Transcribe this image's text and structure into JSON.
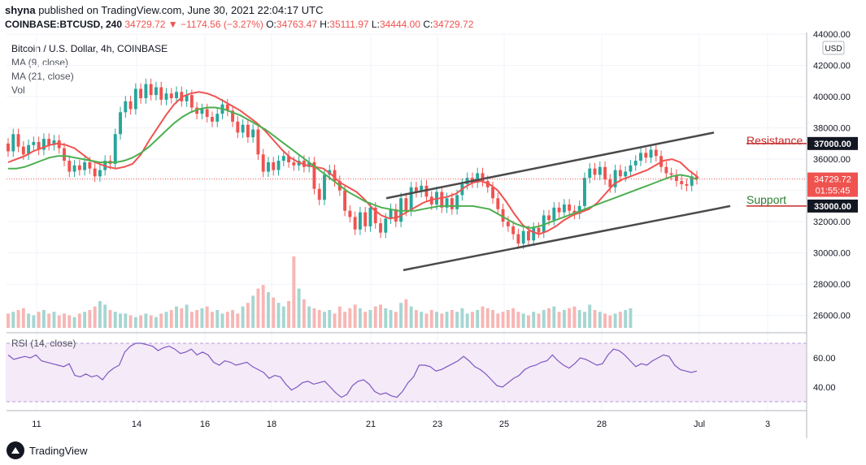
{
  "header": {
    "author": "shyna",
    "published": "published on TradingView.com, June 30, 2021 22:04:17 UTC",
    "symbol": "COINBASE:BTCUSD, 240",
    "price": "34729.72",
    "change": "−1174.56 (−3.27%)",
    "o_label": "O:",
    "o": "34763.47",
    "h_label": "H:",
    "h": "35111.97",
    "l_label": "L:",
    "l": "34444.00",
    "c_label": "C:",
    "c": "34729.72"
  },
  "legend": {
    "title": "Bitcoin / U.S. Dollar, 4h, COINBASE",
    "ma9": "MA (9, close)",
    "ma21": "MA (21, close)",
    "vol": "Vol",
    "rsi": "RSI (14, close)"
  },
  "annotations": {
    "resistance": "Resistance",
    "support": "Support",
    "currency": "USD",
    "countdown": "01:55:45"
  },
  "footer": {
    "brand": "TradingView"
  },
  "colors": {
    "up": "#26a69a",
    "down": "#ef5350",
    "ma9": "#ef5350",
    "ma21": "#4caf50",
    "rsi": "#7e57c2",
    "rsi_band": "#f3e5f5",
    "channel": "#4a4a4a"
  },
  "chart_data": {
    "type": "candlestick",
    "title": "Bitcoin / U.S. Dollar, 4h, COINBASE",
    "y_range": [
      25000,
      44000
    ],
    "y_ticks": [
      "44000.00",
      "42000.00",
      "40000.00",
      "38000.00",
      "36000.00",
      "34000.00",
      "32000.00",
      "30000.00",
      "28000.00",
      "26000.00"
    ],
    "x_tick_labels": [
      "11",
      "14",
      "16",
      "18",
      "21",
      "23",
      "25",
      "28",
      "Jul",
      "3"
    ],
    "x_range_days": [
      "2021-06-10",
      "2021-07-04"
    ],
    "candles": [
      {
        "o": 37000,
        "c": 36500
      },
      {
        "o": 36500,
        "c": 37600
      },
      {
        "o": 37600,
        "c": 36800
      },
      {
        "o": 36800,
        "c": 36300
      },
      {
        "o": 36300,
        "c": 36900
      },
      {
        "o": 36900,
        "c": 37100
      },
      {
        "o": 37100,
        "c": 36600
      },
      {
        "o": 36600,
        "c": 37300
      },
      {
        "o": 37300,
        "c": 36900
      },
      {
        "o": 36900,
        "c": 37200
      },
      {
        "o": 37200,
        "c": 36700
      },
      {
        "o": 36700,
        "c": 35900
      },
      {
        "o": 35900,
        "c": 35200
      },
      {
        "o": 35200,
        "c": 35600
      },
      {
        "o": 35600,
        "c": 35300
      },
      {
        "o": 35300,
        "c": 35800
      },
      {
        "o": 35800,
        "c": 35400
      },
      {
        "o": 35400,
        "c": 34900
      },
      {
        "o": 34900,
        "c": 35300
      },
      {
        "o": 35300,
        "c": 35900
      },
      {
        "o": 35900,
        "c": 35700
      },
      {
        "o": 35700,
        "c": 37600
      },
      {
        "o": 37600,
        "c": 39000
      },
      {
        "o": 39000,
        "c": 39700
      },
      {
        "o": 39700,
        "c": 39200
      },
      {
        "o": 39200,
        "c": 40500
      },
      {
        "o": 40500,
        "c": 39900
      },
      {
        "o": 39900,
        "c": 40800
      },
      {
        "o": 40800,
        "c": 40100
      },
      {
        "o": 40100,
        "c": 40600
      },
      {
        "o": 40600,
        "c": 39800
      },
      {
        "o": 39800,
        "c": 40200
      },
      {
        "o": 40200,
        "c": 39900
      },
      {
        "o": 39900,
        "c": 40300
      },
      {
        "o": 40300,
        "c": 39700
      },
      {
        "o": 39700,
        "c": 40100
      },
      {
        "o": 40100,
        "c": 39300
      },
      {
        "o": 39300,
        "c": 38900
      },
      {
        "o": 38900,
        "c": 39200
      },
      {
        "o": 39200,
        "c": 38700
      },
      {
        "o": 38700,
        "c": 38400
      },
      {
        "o": 38400,
        "c": 38900
      },
      {
        "o": 38900,
        "c": 39500
      },
      {
        "o": 39500,
        "c": 39100
      },
      {
        "o": 39100,
        "c": 38400
      },
      {
        "o": 38400,
        "c": 37700
      },
      {
        "o": 37700,
        "c": 38200
      },
      {
        "o": 38200,
        "c": 37400
      },
      {
        "o": 37400,
        "c": 37900
      },
      {
        "o": 37900,
        "c": 36300
      },
      {
        "o": 36300,
        "c": 35200
      },
      {
        "o": 35200,
        "c": 35800
      },
      {
        "o": 35800,
        "c": 35300
      },
      {
        "o": 35300,
        "c": 35900
      },
      {
        "o": 35900,
        "c": 36200
      },
      {
        "o": 36200,
        "c": 35800
      },
      {
        "o": 35800,
        "c": 35600
      },
      {
        "o": 35600,
        "c": 35900
      },
      {
        "o": 35900,
        "c": 35500
      },
      {
        "o": 35500,
        "c": 35800
      },
      {
        "o": 35800,
        "c": 34100
      },
      {
        "o": 34100,
        "c": 33400
      },
      {
        "o": 33400,
        "c": 35000
      },
      {
        "o": 35000,
        "c": 35300
      },
      {
        "o": 35300,
        "c": 34600
      },
      {
        "o": 34600,
        "c": 34000
      },
      {
        "o": 34000,
        "c": 32700
      },
      {
        "o": 32700,
        "c": 32300
      },
      {
        "o": 32300,
        "c": 31500
      },
      {
        "o": 31500,
        "c": 32600
      },
      {
        "o": 32600,
        "c": 31700
      },
      {
        "o": 31700,
        "c": 32900
      },
      {
        "o": 32900,
        "c": 31900
      },
      {
        "o": 31900,
        "c": 31300
      },
      {
        "o": 31300,
        "c": 32200
      },
      {
        "o": 32200,
        "c": 32800
      },
      {
        "o": 32800,
        "c": 32000
      },
      {
        "o": 32000,
        "c": 33500
      },
      {
        "o": 33500,
        "c": 32700
      },
      {
        "o": 32700,
        "c": 34200
      },
      {
        "o": 34200,
        "c": 33900
      },
      {
        "o": 33900,
        "c": 34300
      },
      {
        "o": 34300,
        "c": 33600
      },
      {
        "o": 33600,
        "c": 33100
      },
      {
        "o": 33100,
        "c": 33900
      },
      {
        "o": 33900,
        "c": 32900
      },
      {
        "o": 32900,
        "c": 33500
      },
      {
        "o": 33500,
        "c": 32800
      },
      {
        "o": 32800,
        "c": 33700
      },
      {
        "o": 33700,
        "c": 34400
      },
      {
        "o": 34400,
        "c": 34800
      },
      {
        "o": 34800,
        "c": 34500
      },
      {
        "o": 34500,
        "c": 35100
      },
      {
        "o": 35100,
        "c": 34600
      },
      {
        "o": 34600,
        "c": 34200
      },
      {
        "o": 34200,
        "c": 33500
      },
      {
        "o": 33500,
        "c": 32800
      },
      {
        "o": 32800,
        "c": 32000
      },
      {
        "o": 32000,
        "c": 31700
      },
      {
        "o": 31700,
        "c": 31200
      },
      {
        "o": 31200,
        "c": 30600
      },
      {
        "o": 30600,
        "c": 31400
      },
      {
        "o": 31400,
        "c": 30800
      },
      {
        "o": 30800,
        "c": 31600
      },
      {
        "o": 31600,
        "c": 31300
      },
      {
        "o": 31300,
        "c": 32400
      },
      {
        "o": 32400,
        "c": 32100
      },
      {
        "o": 32100,
        "c": 32900
      },
      {
        "o": 32900,
        "c": 32600
      },
      {
        "o": 32600,
        "c": 33100
      },
      {
        "o": 33100,
        "c": 32700
      },
      {
        "o": 32700,
        "c": 32500
      },
      {
        "o": 32500,
        "c": 33000
      },
      {
        "o": 33000,
        "c": 34800
      },
      {
        "o": 34800,
        "c": 35400
      },
      {
        "o": 35400,
        "c": 35000
      },
      {
        "o": 35000,
        "c": 35500
      },
      {
        "o": 35500,
        "c": 34700
      },
      {
        "o": 34700,
        "c": 34200
      },
      {
        "o": 34200,
        "c": 35300
      },
      {
        "o": 35300,
        "c": 34900
      },
      {
        "o": 34900,
        "c": 35200
      },
      {
        "o": 35200,
        "c": 35600
      },
      {
        "o": 35600,
        "c": 35900
      },
      {
        "o": 35900,
        "c": 36400
      },
      {
        "o": 36400,
        "c": 36100
      },
      {
        "o": 36100,
        "c": 36600
      },
      {
        "o": 36600,
        "c": 36200
      },
      {
        "o": 36200,
        "c": 35500
      },
      {
        "o": 35500,
        "c": 35100
      },
      {
        "o": 35100,
        "c": 35000
      },
      {
        "o": 35000,
        "c": 34600
      },
      {
        "o": 34600,
        "c": 34400
      },
      {
        "o": 34400,
        "c": 34300
      },
      {
        "o": 34300,
        "c": 34900
      },
      {
        "o": 34900,
        "c": 34729.72
      }
    ],
    "series": [
      {
        "name": "MA (9, close)",
        "values": [
          35800,
          36000,
          36200,
          36500,
          36700,
          36900,
          37000,
          36900,
          36700,
          36300,
          35900,
          35700,
          35500,
          35400,
          35500,
          35700,
          36300,
          37200,
          38000,
          38800,
          39500,
          40000,
          40200,
          40300,
          40200,
          40000,
          39700,
          39400,
          39100,
          38700,
          38300,
          37800,
          37200,
          36600,
          36100,
          35800,
          35600,
          35500,
          35400,
          35000,
          34500,
          34200,
          33900,
          33400,
          32800,
          32400,
          32200,
          32300,
          32600,
          32900,
          33200,
          33400,
          33500,
          33600,
          33800,
          34200,
          34500,
          34600,
          34400,
          34000,
          33300,
          32500,
          31800,
          31400,
          31200,
          31400,
          31700,
          32100,
          32400,
          32600,
          32800,
          33200,
          33800,
          34400,
          34700,
          34900,
          35100,
          35300,
          35600,
          35900,
          36000,
          35800,
          35300,
          34900
        ]
      },
      {
        "name": "MA (21, close)",
        "values": [
          35400,
          35400,
          35500,
          35700,
          35900,
          36100,
          36200,
          36200,
          36100,
          36000,
          35900,
          35800,
          35800,
          35800,
          35900,
          36100,
          36400,
          36800,
          37300,
          37800,
          38300,
          38700,
          39000,
          39200,
          39300,
          39300,
          39200,
          39000,
          38800,
          38500,
          38200,
          37900,
          37500,
          37100,
          36700,
          36300,
          35900,
          35500,
          35100,
          34700,
          34300,
          33900,
          33600,
          33300,
          33100,
          32900,
          32800,
          32700,
          32700,
          32700,
          32800,
          32900,
          33000,
          33000,
          33000,
          33000,
          33000,
          32900,
          32800,
          32500,
          32200,
          31900,
          31700,
          31600,
          31700,
          31900,
          32100,
          32300,
          32500,
          32700,
          32900,
          33100,
          33300,
          33500,
          33700,
          33900,
          34100,
          34300,
          34500,
          34700,
          34900,
          35000,
          34900,
          34700
        ]
      }
    ],
    "channel": {
      "upper": [
        {
          "x": "2021-06-21",
          "y": 33500
        },
        {
          "x": "2021-07-02",
          "y": 37700
        }
      ],
      "lower": [
        {
          "x": "2021-06-22",
          "y": 28900
        },
        {
          "x": "2021-07-02",
          "y": 33000
        }
      ]
    },
    "levels": [
      {
        "label": "Resistance",
        "value": 37000,
        "tag": "37000.00"
      },
      {
        "label": "Support",
        "value": 33000,
        "tag": "33000.00"
      }
    ],
    "last_price": {
      "value": 34729.72,
      "tag": "34729.72"
    },
    "rsi": {
      "name": "RSI (14, close)",
      "y_range": [
        25,
        75
      ],
      "ticks": [
        "60.00",
        "40.00"
      ],
      "band": [
        30,
        70
      ],
      "values": [
        62,
        59,
        60,
        61,
        60,
        62,
        58,
        57,
        56,
        55,
        54,
        56,
        48,
        47,
        49,
        47,
        48,
        45,
        50,
        53,
        55,
        64,
        68,
        70,
        70,
        69,
        68,
        65,
        67,
        68,
        66,
        63,
        64,
        66,
        62,
        64,
        62,
        57,
        55,
        58,
        57,
        55,
        56,
        57,
        54,
        52,
        50,
        46,
        48,
        47,
        42,
        38,
        40,
        43,
        44,
        42,
        43,
        44,
        40,
        36,
        33,
        35,
        41,
        44,
        45,
        42,
        37,
        35,
        36,
        34,
        33,
        37,
        43,
        47,
        55,
        55,
        54,
        51,
        52,
        54,
        56,
        58,
        61,
        58,
        54,
        52,
        49,
        45,
        41,
        40,
        43,
        46,
        48,
        52,
        54,
        55,
        57,
        58,
        62,
        58,
        55,
        53,
        56,
        60,
        59,
        57,
        55,
        56,
        62,
        66,
        65,
        62,
        58,
        54,
        56,
        55,
        58,
        60,
        62,
        61,
        55,
        52,
        51,
        50,
        51
      ]
    },
    "volume": {
      "values": [
        8,
        9,
        10,
        11,
        8,
        7,
        9,
        10,
        8,
        9,
        7,
        8,
        7,
        6,
        8,
        9,
        10,
        12,
        15,
        13,
        10,
        9,
        8,
        8,
        7,
        6,
        7,
        8,
        7,
        6,
        8,
        9,
        10,
        12,
        11,
        13,
        9,
        10,
        11,
        12,
        9,
        10,
        8,
        9,
        10,
        8,
        12,
        14,
        18,
        22,
        24,
        20,
        17,
        14,
        12,
        15,
        40,
        22,
        16,
        12,
        11,
        10,
        9,
        10,
        8,
        12,
        9,
        11,
        13,
        11,
        9,
        10,
        12,
        13,
        11,
        10,
        9,
        14,
        16,
        12,
        10,
        9,
        8,
        10,
        9,
        8,
        9,
        10,
        9,
        11,
        8,
        9,
        10,
        12,
        11,
        10,
        8,
        9,
        10,
        11,
        9,
        8,
        7,
        9,
        8,
        10,
        11,
        12,
        9,
        10,
        11,
        12,
        10,
        9,
        13,
        10,
        9,
        8,
        7,
        8,
        9,
        10,
        11
      ]
    }
  }
}
